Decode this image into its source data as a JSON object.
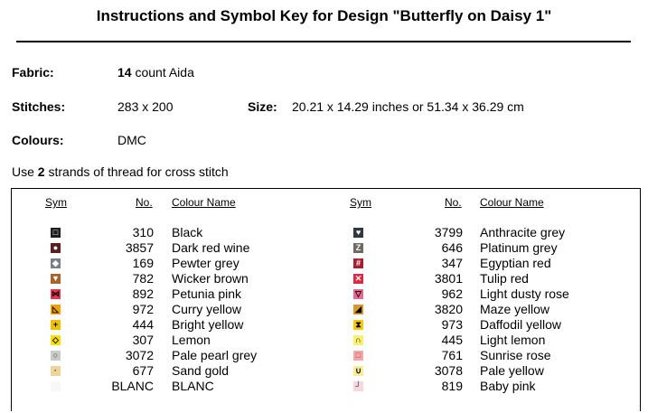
{
  "title": "Instructions and Symbol Key for Design \"Butterfly on Daisy 1\"",
  "fabric": {
    "label": "Fabric:",
    "count": "14",
    "value": "count Aida"
  },
  "stitches": {
    "label": "Stitches:",
    "value": "283 x 200"
  },
  "size": {
    "label": "Size:",
    "value": "20.21 x 14.29 inches or 51.34 x 36.29 cm"
  },
  "colours": {
    "label": "Colours:",
    "value": "DMC"
  },
  "strands": {
    "pre": "Use",
    "count": "2",
    "post": "strands of thread for cross stitch"
  },
  "headers": {
    "sym": "Sym",
    "no": "No.",
    "name": "Colour Name"
  },
  "left": [
    {
      "no": "310",
      "name": "Black",
      "bg": "#1e1e1e",
      "fg": "#fff",
      "glyph": "□"
    },
    {
      "no": "3857",
      "name": "Dark red wine",
      "bg": "#5a2020",
      "fg": "#fff",
      "glyph": "●"
    },
    {
      "no": "169",
      "name": "Pewter grey",
      "bg": "#7a8088",
      "fg": "#fff",
      "glyph": "◆"
    },
    {
      "no": "782",
      "name": "Wicker brown",
      "bg": "#a8642a",
      "fg": "#fff",
      "glyph": "▼"
    },
    {
      "no": "892",
      "name": "Petunia pink",
      "bg": "#e8344e",
      "fg": "#000",
      "glyph": "⋈"
    },
    {
      "no": "972",
      "name": "Curry yellow",
      "bg": "#f0a000",
      "fg": "#000",
      "glyph": "◺"
    },
    {
      "no": "444",
      "name": "Bright yellow",
      "bg": "#f0c000",
      "fg": "#000",
      "glyph": "+"
    },
    {
      "no": "307",
      "name": "Lemon",
      "bg": "#f8e000",
      "fg": "#000",
      "glyph": "◇"
    },
    {
      "no": "3072",
      "name": "Pale pearl grey",
      "bg": "#c8ccc8",
      "fg": "#333",
      "glyph": "○"
    },
    {
      "no": "677",
      "name": "Sand gold",
      "bg": "#ecd49a",
      "fg": "#333",
      "glyph": "·"
    },
    {
      "no": "BLANC",
      "name": "BLANC",
      "bg": "#f8f8f8",
      "fg": "#fff",
      "glyph": ""
    }
  ],
  "right": [
    {
      "no": "3799",
      "name": "Anthracite grey",
      "bg": "#333840",
      "fg": "#fff",
      "glyph": "♥"
    },
    {
      "no": "646",
      "name": "Platinum grey",
      "bg": "#6e6a64",
      "fg": "#fff",
      "glyph": "Z"
    },
    {
      "no": "347",
      "name": "Egyptian red",
      "bg": "#a82030",
      "fg": "#fff",
      "glyph": "#"
    },
    {
      "no": "3801",
      "name": "Tulip red",
      "bg": "#e02840",
      "fg": "#fff",
      "glyph": "✕"
    },
    {
      "no": "962",
      "name": "Light dusty rose",
      "bg": "#e86890",
      "fg": "#000",
      "glyph": "▽"
    },
    {
      "no": "3820",
      "name": "Maze yellow",
      "bg": "#d8982c",
      "fg": "#000",
      "glyph": "◢"
    },
    {
      "no": "973",
      "name": "Daffodil yellow",
      "bg": "#f8c800",
      "fg": "#000",
      "glyph": "⧗"
    },
    {
      "no": "445",
      "name": "Light lemon",
      "bg": "#f8f070",
      "fg": "#000",
      "glyph": "∩"
    },
    {
      "no": "761",
      "name": "Sunrise rose",
      "bg": "#f4a8a8",
      "fg": "#a04040",
      "glyph": "□"
    },
    {
      "no": "3078",
      "name": "Pale yellow",
      "bg": "#f8ec98",
      "fg": "#000",
      "glyph": "∪"
    },
    {
      "no": "819",
      "name": "Baby pink",
      "bg": "#f8d8d8",
      "fg": "#0030a0",
      "glyph": "┘"
    }
  ]
}
